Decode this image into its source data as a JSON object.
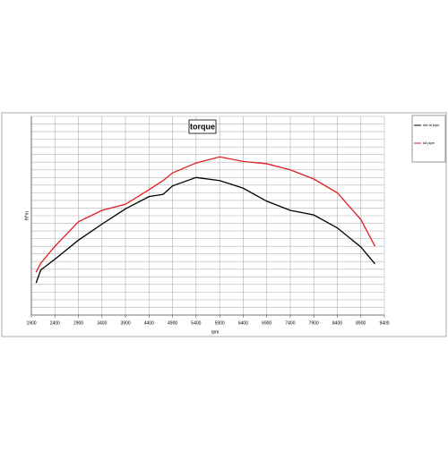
{
  "chart_data": {
    "type": "line",
    "title": "torque",
    "xlabel": "rpm",
    "ylabel": "N*m",
    "x": [
      2000,
      2100,
      2400,
      2900,
      3400,
      3900,
      4400,
      4700,
      4900,
      5400,
      5900,
      6400,
      6900,
      7400,
      7900,
      8400,
      8900,
      9200
    ],
    "series": [
      {
        "name": "std at pipe",
        "color": "#000000",
        "values": [
          4.2,
          5.9,
          7.3,
          9.8,
          11.9,
          13.9,
          15.5,
          15.8,
          16.9,
          18.0,
          17.6,
          16.6,
          14.9,
          13.7,
          13.1,
          11.4,
          8.9,
          6.7
        ]
      },
      {
        "name": "k8 pipe",
        "color": "#e02020",
        "values": [
          5.6,
          6.8,
          9.0,
          12.2,
          13.7,
          14.5,
          16.4,
          17.6,
          18.6,
          19.9,
          20.7,
          20.1,
          19.8,
          19.0,
          17.8,
          16.0,
          12.5,
          9.0
        ]
      }
    ],
    "xlim": [
      1900,
      9400
    ],
    "xticks": [
      1900,
      2400,
      2900,
      3400,
      3900,
      4400,
      4900,
      5400,
      5900,
      6400,
      6900,
      7400,
      7900,
      8400,
      8900,
      9400
    ],
    "ylim": [
      0,
      26
    ],
    "grid": true
  }
}
